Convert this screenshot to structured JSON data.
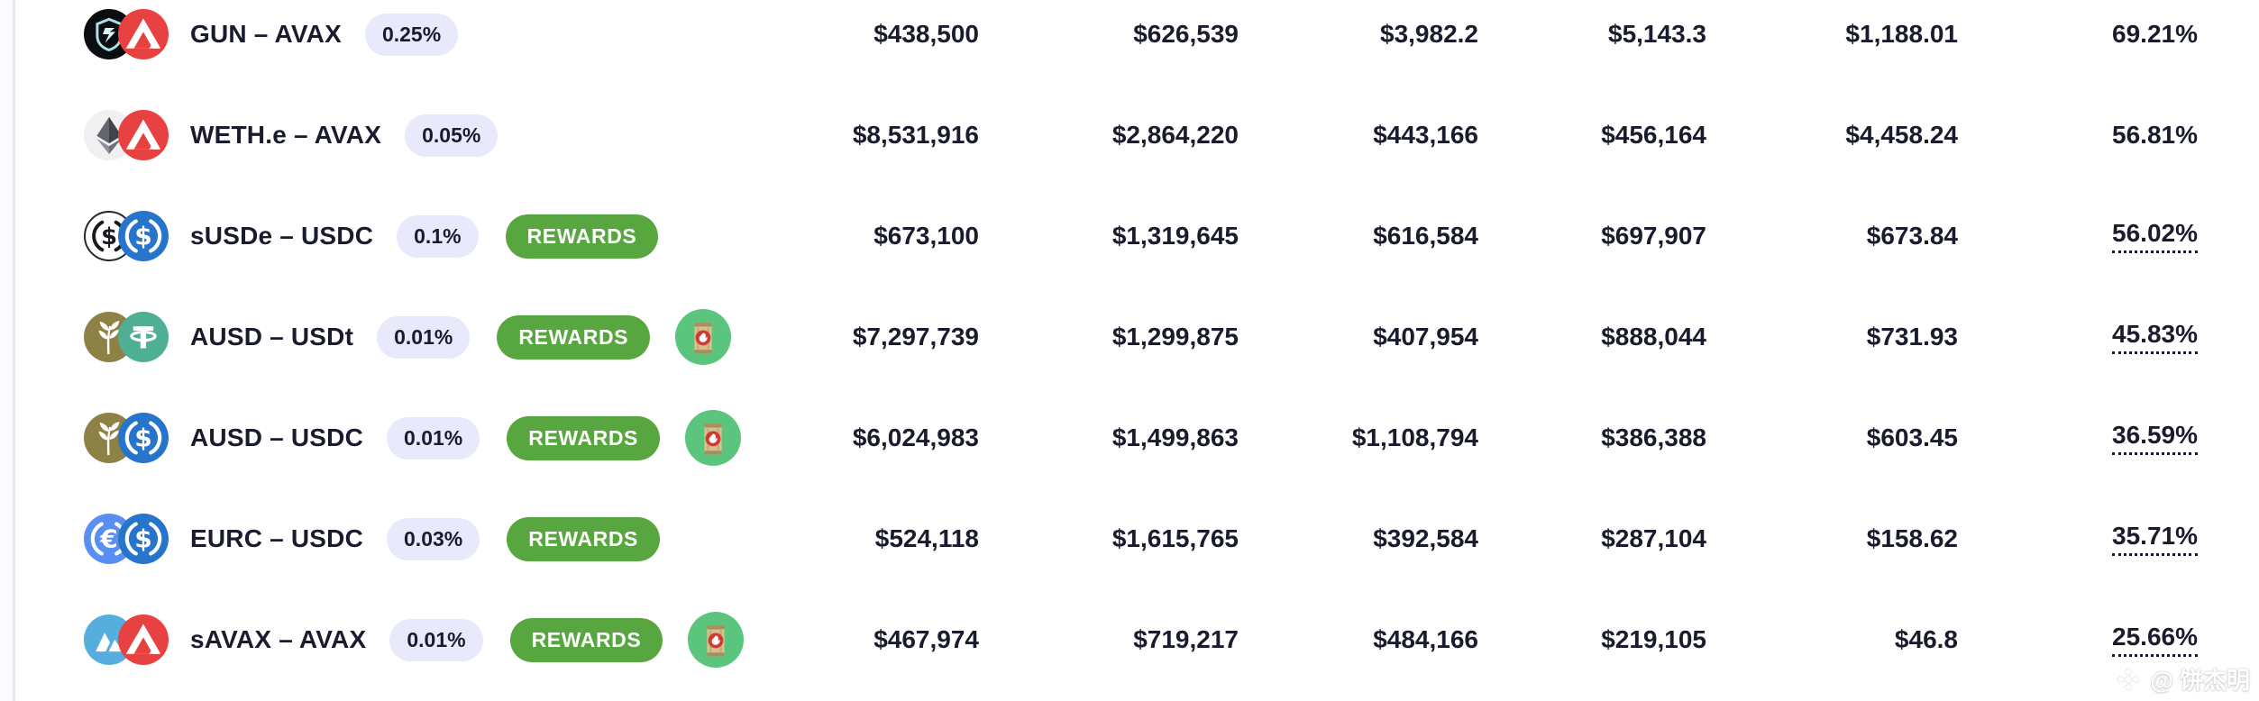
{
  "colors": {
    "text": "#1a1c2e",
    "fee_badge_bg": "#e9e9fc",
    "rewards_green": "#58a63f",
    "boost_circle_green": "#5bc47d",
    "avax_red": "#e84142",
    "usdc_blue": "#2775ca",
    "usdt_teal": "#4faf95",
    "eurc_blue": "#5a8ff2",
    "savax_blue": "#55aede",
    "ausd_olive": "#8d8146",
    "gun_black": "#0c0d11",
    "weth_gray": "#f0f0f3"
  },
  "watermark": {
    "icon": "binance-diamond-icon",
    "text": "@ 饼杰明"
  },
  "table": {
    "rewards_label": "REWARDS",
    "rows": [
      {
        "pair": "GUN – AVAX",
        "token_a": "GUN",
        "token_b": "AVAX",
        "fee": "0.25%",
        "rewards": false,
        "boost": false,
        "values": [
          "$438,500",
          "$626,539",
          "$3,982.2",
          "$5,143.3",
          "$1,188.01"
        ],
        "apr": "69.21%",
        "apr_underlined": false
      },
      {
        "pair": "WETH.e – AVAX",
        "token_a": "WETH.e",
        "token_b": "AVAX",
        "fee": "0.05%",
        "rewards": false,
        "boost": false,
        "values": [
          "$8,531,916",
          "$2,864,220",
          "$443,166",
          "$456,164",
          "$4,458.24"
        ],
        "apr": "56.81%",
        "apr_underlined": false
      },
      {
        "pair": "sUSDe – USDC",
        "token_a": "sUSDe",
        "token_b": "USDC",
        "fee": "0.1%",
        "rewards": true,
        "boost": false,
        "values": [
          "$673,100",
          "$1,319,645",
          "$616,584",
          "$697,907",
          "$673.84"
        ],
        "apr": "56.02%",
        "apr_underlined": true
      },
      {
        "pair": "AUSD – USDt",
        "token_a": "AUSD",
        "token_b": "USDt",
        "fee": "0.01%",
        "rewards": true,
        "boost": true,
        "values": [
          "$7,297,739",
          "$1,299,875",
          "$407,954",
          "$888,044",
          "$731.93"
        ],
        "apr": "45.83%",
        "apr_underlined": true
      },
      {
        "pair": "AUSD – USDC",
        "token_a": "AUSD",
        "token_b": "USDC",
        "fee": "0.01%",
        "rewards": true,
        "boost": true,
        "values": [
          "$6,024,983",
          "$1,499,863",
          "$1,108,794",
          "$386,388",
          "$603.45"
        ],
        "apr": "36.59%",
        "apr_underlined": true
      },
      {
        "pair": "EURC – USDC",
        "token_a": "EURC",
        "token_b": "USDC",
        "fee": "0.03%",
        "rewards": true,
        "boost": false,
        "values": [
          "$524,118",
          "$1,615,765",
          "$392,584",
          "$287,104",
          "$158.62"
        ],
        "apr": "35.71%",
        "apr_underlined": true
      },
      {
        "pair": "sAVAX – AVAX",
        "token_a": "sAVAX",
        "token_b": "AVAX",
        "fee": "0.01%",
        "rewards": true,
        "boost": true,
        "values": [
          "$467,974",
          "$719,217",
          "$484,166",
          "$219,105",
          "$46.8"
        ],
        "apr": "25.66%",
        "apr_underlined": true
      }
    ]
  }
}
